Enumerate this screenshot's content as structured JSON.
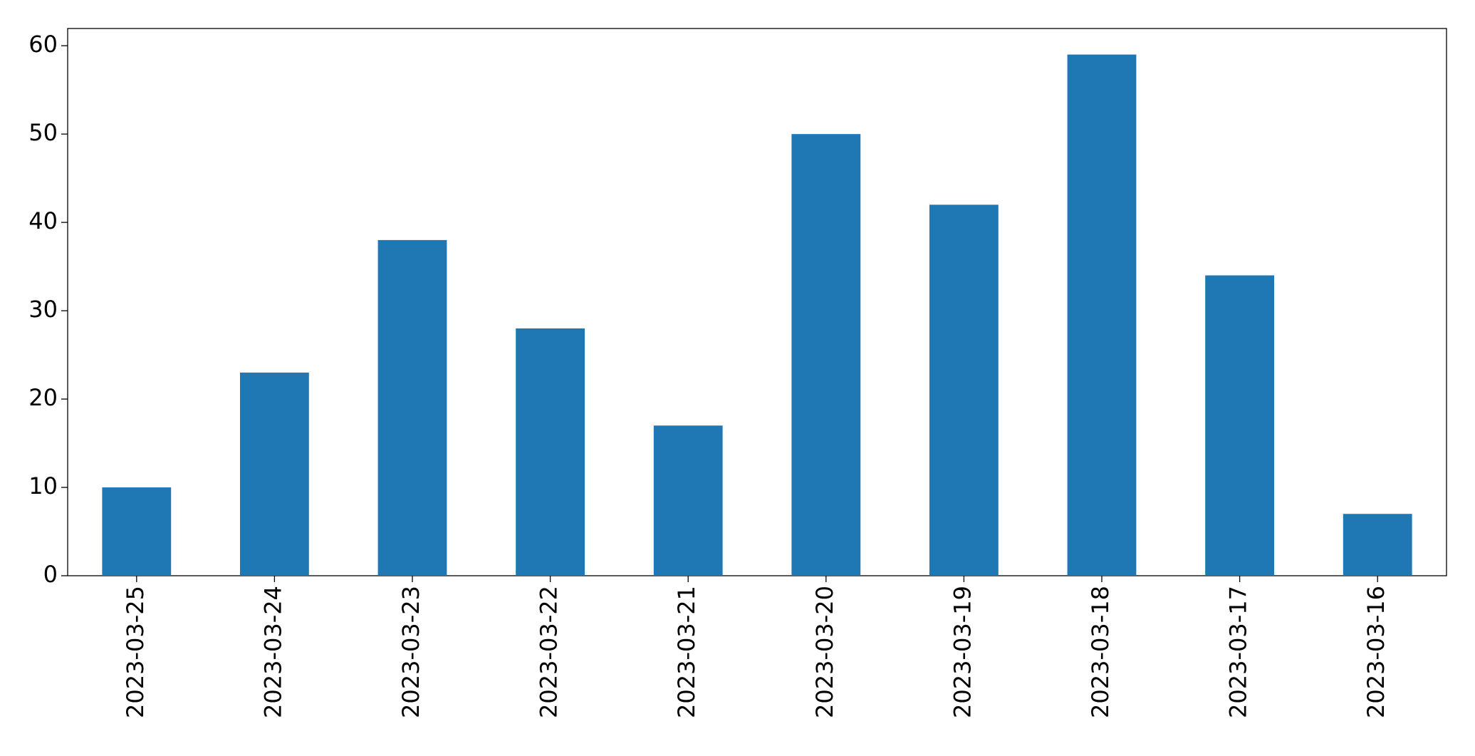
{
  "chart_data": {
    "type": "bar",
    "categories": [
      "2023-03-25",
      "2023-03-24",
      "2023-03-23",
      "2023-03-22",
      "2023-03-21",
      "2023-03-20",
      "2023-03-19",
      "2023-03-18",
      "2023-03-17",
      "2023-03-16"
    ],
    "values": [
      10,
      23,
      38,
      28,
      17,
      50,
      42,
      59,
      34,
      7
    ],
    "color": "#1f77b4",
    "ylim": [
      0,
      61.95
    ],
    "yticks": [
      0,
      10,
      20,
      30,
      40,
      50,
      60
    ],
    "grid": false
  }
}
